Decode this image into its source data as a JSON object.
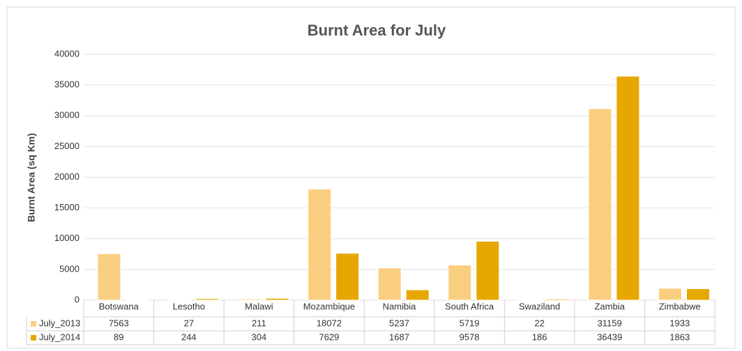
{
  "chart_data": {
    "type": "bar",
    "title": "Burnt Area for July",
    "y_label": "Burnt Area (sq Km)",
    "categories": [
      "Botswana",
      "Lesotho",
      "Malawi",
      "Mozambique",
      "Namibia",
      "South Africa",
      "Swaziland",
      "Zambia",
      "Zimbabwe"
    ],
    "series": [
      {
        "name": "July_2013",
        "color": "#f9cf7f",
        "values": [
          7563,
          27,
          211,
          18072,
          5237,
          5719,
          22,
          31159,
          1933
        ]
      },
      {
        "name": "July_2014",
        "color": "#e6a700",
        "values": [
          89,
          244,
          304,
          7629,
          1687,
          9578,
          186,
          36439,
          1863
        ]
      }
    ],
    "ylim": [
      0,
      40000
    ],
    "yticks": [
      0,
      5000,
      10000,
      15000,
      20000,
      25000,
      30000,
      35000,
      40000
    ],
    "grid": true
  }
}
